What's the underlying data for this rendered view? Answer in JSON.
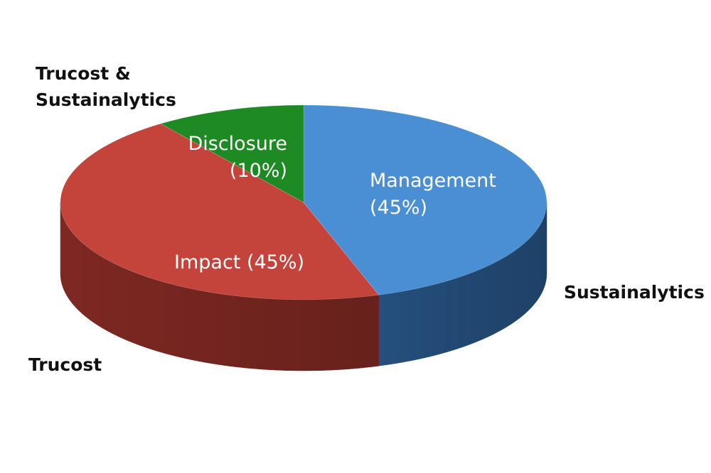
{
  "chart_data": {
    "type": "pie",
    "title": "",
    "style": "3d",
    "slices": [
      {
        "name": "Management",
        "value": 45,
        "label_lines": [
          "Management",
          "(45%)"
        ],
        "provider": "Sustainalytics",
        "color": "#4a8fd4",
        "side_color": "#254f7d"
      },
      {
        "name": "Impact",
        "value": 45,
        "label_lines": [
          "Impact (45%)"
        ],
        "provider": "Trucost",
        "color": "#c4443c",
        "side_color": "#7e2822"
      },
      {
        "name": "Disclosure",
        "value": 10,
        "label_lines": [
          "Disclosure",
          "(10%)"
        ],
        "provider_lines": [
          "Trucost &",
          "Sustainalytics"
        ],
        "color": "#1e8a24",
        "side_color": "#125016"
      }
    ]
  }
}
